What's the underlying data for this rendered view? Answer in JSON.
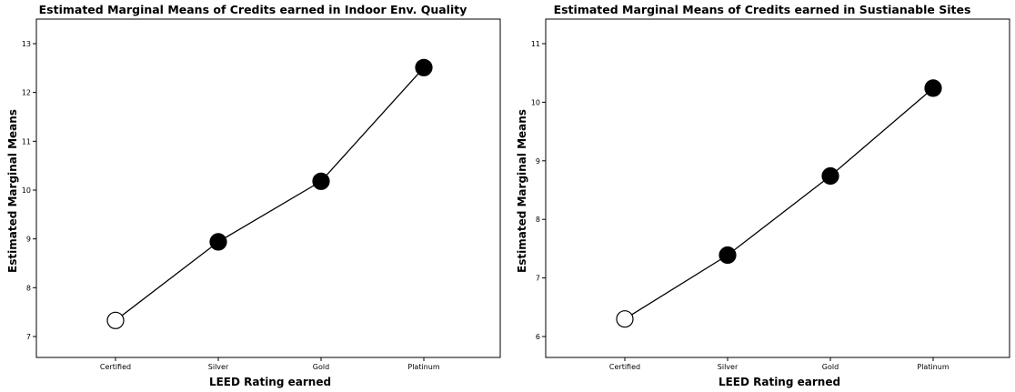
{
  "chart_data": [
    {
      "type": "line",
      "title": "Estimated Marginal Means of Credits earned in Indoor Env. Quality",
      "xlabel": "LEED Rating earned",
      "ylabel": "Estimated Marginal Means",
      "categories": [
        "Certified",
        "Silver",
        "Gold",
        "Platinum"
      ],
      "values": [
        7.33,
        8.94,
        10.18,
        12.51
      ],
      "marker_filled": [
        false,
        true,
        true,
        true
      ],
      "yticks": [
        "7",
        "8",
        "9",
        "10",
        "11",
        "12",
        "13"
      ],
      "ylim": [
        7,
        13
      ],
      "grid": false,
      "legend": "none"
    },
    {
      "type": "line",
      "title": "Estimated Marginal Means of Credits earned in Sustianable Sites",
      "xlabel": "LEED Rating earned",
      "ylabel": "Estimated Marginal Means",
      "categories": [
        "Certified",
        "Silver",
        "Gold",
        "Platinum"
      ],
      "values": [
        6.3,
        7.39,
        8.74,
        10.24
      ],
      "marker_filled": [
        false,
        true,
        true,
        true
      ],
      "yticks": [
        "6",
        "7",
        "8",
        "9",
        "10",
        "11"
      ],
      "ylim": [
        6,
        11
      ],
      "grid": false,
      "legend": "none"
    }
  ],
  "colors": {
    "line": "#000000",
    "marker_fill": "#000000",
    "open_marker_fill": "#ffffff"
  }
}
